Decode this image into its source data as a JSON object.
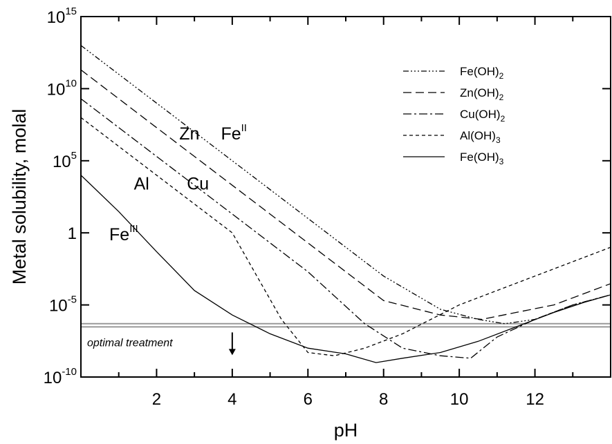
{
  "chart_data": {
    "type": "line",
    "xlabel": "pH",
    "ylabel": "Metal solubility, molal",
    "y_scale": "log",
    "xlim": [
      0,
      14
    ],
    "ylim": [
      1e-10,
      1000000000000000.0
    ],
    "x_ticks": [
      {
        "value": 2,
        "label": "2"
      },
      {
        "value": 4,
        "label": "4"
      },
      {
        "value": 6,
        "label": "6"
      },
      {
        "value": 8,
        "label": "8"
      },
      {
        "value": 10,
        "label": "10"
      },
      {
        "value": 12,
        "label": "12"
      }
    ],
    "y_ticks": [
      {
        "value": 1000000000000000.0,
        "base": "10",
        "exp": "15"
      },
      {
        "value": 10000000000.0,
        "base": "10",
        "exp": "10"
      },
      {
        "value": 100000.0,
        "base": "10",
        "exp": "5"
      },
      {
        "value": 1,
        "base": "1",
        "exp": ""
      },
      {
        "value": 1e-05,
        "base": "10",
        "exp": "-5"
      },
      {
        "value": 1e-10,
        "base": "10",
        "exp": "-10"
      }
    ],
    "series": [
      {
        "name": "Fe(OH)2",
        "name_base": "Fe(OH)",
        "name_sub": "2",
        "dash": "8,3,2,3,2,3,2,3",
        "points": [
          [
            0,
            10000000000000.0
          ],
          [
            2,
            1000000000.0
          ],
          [
            4,
            100000.0
          ],
          [
            6,
            10
          ],
          [
            8,
            0.001
          ],
          [
            9.5,
            5e-06
          ],
          [
            10.5,
            1e-06
          ],
          [
            11.2,
            5e-07
          ],
          [
            12,
            1e-06
          ],
          [
            13,
            1e-05
          ],
          [
            14,
            5e-05
          ]
        ]
      },
      {
        "name": "Zn(OH)2",
        "name_base": "Zn(OH)",
        "name_sub": "2",
        "dash": "12,6",
        "points": [
          [
            0,
            200000000000.0
          ],
          [
            2,
            20000000.0
          ],
          [
            4,
            2000.0
          ],
          [
            6,
            0.2
          ],
          [
            8,
            2e-05
          ],
          [
            9.5,
            2e-06
          ],
          [
            10.6,
            1e-06
          ],
          [
            11.5,
            3e-06
          ],
          [
            12.5,
            1e-05
          ],
          [
            14,
            0.0003
          ]
        ]
      },
      {
        "name": "Cu(OH)2",
        "name_base": "Cu(OH)",
        "name_sub": "2",
        "dash": "12,4,3,4",
        "points": [
          [
            0,
            2000000000.0
          ],
          [
            2,
            200000.0
          ],
          [
            4,
            20
          ],
          [
            6,
            0.002
          ],
          [
            7.5,
            5e-07
          ],
          [
            8.5,
            1e-08
          ],
          [
            9.5,
            3e-09
          ],
          [
            10.3,
            2e-09
          ],
          [
            11,
            6e-08
          ],
          [
            12,
            1e-06
          ],
          [
            13,
            1e-05
          ],
          [
            14,
            5e-05
          ]
        ]
      },
      {
        "name": "Al(OH)3",
        "name_base": "Al(OH)",
        "name_sub": "3",
        "dash": "5,4",
        "points": [
          [
            0,
            100000000.0
          ],
          [
            2,
            10000.0
          ],
          [
            4,
            1
          ],
          [
            5.3,
            1e-06
          ],
          [
            6,
            5e-09
          ],
          [
            6.7,
            3e-09
          ],
          [
            7.5,
            1e-08
          ],
          [
            8.5,
            1e-07
          ],
          [
            10,
            1e-05
          ],
          [
            12,
            0.001
          ],
          [
            14,
            0.1
          ]
        ]
      },
      {
        "name": "Fe(OH)3",
        "name_base": "Fe(OH)",
        "name_sub": "3",
        "dash": "",
        "points": [
          [
            0,
            10000.0
          ],
          [
            1,
            30
          ],
          [
            2,
            0.05
          ],
          [
            3,
            0.0001
          ],
          [
            4,
            2e-06
          ],
          [
            5,
            1e-07
          ],
          [
            6,
            1e-08
          ],
          [
            7,
            4e-09
          ],
          [
            7.8,
            1e-09
          ],
          [
            8.5,
            2e-09
          ],
          [
            9.5,
            5e-09
          ],
          [
            10.5,
            3e-08
          ],
          [
            11.5,
            3e-07
          ],
          [
            12.5,
            3e-06
          ],
          [
            13.3,
            1.5e-05
          ],
          [
            14,
            5e-05
          ]
        ]
      }
    ],
    "curve_labels": [
      {
        "base": "Zn",
        "sup": "",
        "x": 2.6,
        "y": 3000000.0
      },
      {
        "base": "Fe",
        "sup": "II",
        "x": 3.7,
        "y": 3000000.0
      },
      {
        "base": "Al",
        "sup": "",
        "x": 1.4,
        "y": 1000.0
      },
      {
        "base": "Cu",
        "sup": "",
        "x": 2.8,
        "y": 1000.0
      },
      {
        "base": "Fe",
        "sup": "III",
        "x": 0.75,
        "y": 0.3
      }
    ],
    "threshold": {
      "value_upper": 5e-07,
      "value_lower": 3e-07,
      "label": "optimal treatment",
      "color": "#999999"
    }
  }
}
